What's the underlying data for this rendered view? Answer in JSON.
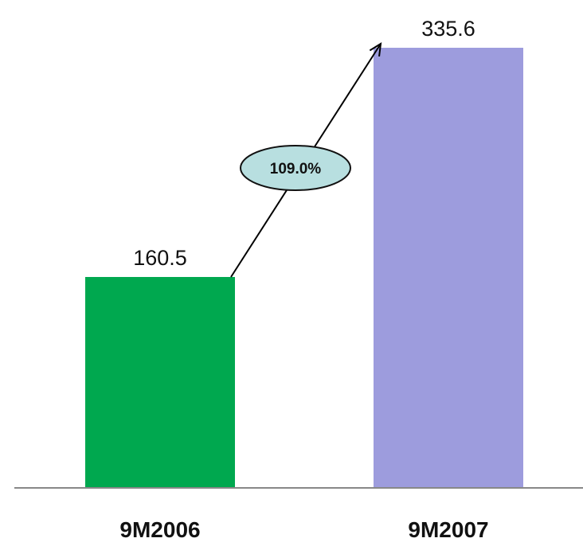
{
  "chart_data": {
    "type": "bar",
    "categories": [
      "9M2006",
      "9M2007"
    ],
    "values": [
      160.5,
      335.6
    ],
    "value_labels": [
      "160.5",
      "335.6"
    ],
    "bar_colors": [
      "#00a84f",
      "#9d9cdd"
    ],
    "ylim": [
      0,
      335.6
    ],
    "grid": false,
    "annotation": {
      "text": "109.0%",
      "type": "growth-arrow",
      "from": "9M2006",
      "to": "9M2007",
      "fill_color": "#b8dfe0"
    }
  },
  "colors": {
    "axis": "#888888",
    "arrow": "#000000"
  }
}
